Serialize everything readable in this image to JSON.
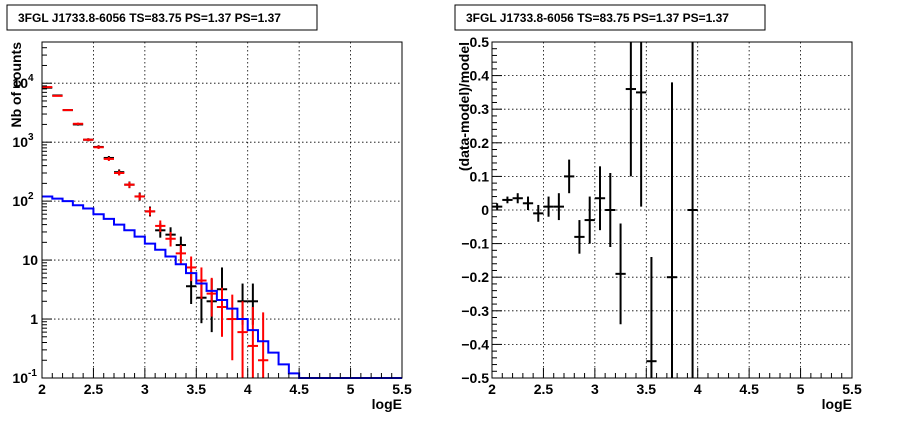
{
  "chart_data": [
    {
      "type": "scatter",
      "title": "3FGL J1733.8-6056 TS=83.75 PS=1.37 PS=1.37",
      "xlabel": "logE",
      "ylabel": "Nb of counts",
      "xlim": [
        2,
        5.5
      ],
      "ylim": [
        0.1,
        50000
      ],
      "yscale": "log",
      "grid": true,
      "x_ticks": [
        "2",
        "2.5",
        "3",
        "3.5",
        "4",
        "4.5",
        "5",
        "5.5"
      ],
      "y_ticks": [
        {
          "value": 0.1,
          "base": "10",
          "exp": "-1"
        },
        {
          "value": 1,
          "base": "1",
          "exp": ""
        },
        {
          "value": 10,
          "base": "10",
          "exp": ""
        },
        {
          "value": 100,
          "base": "10",
          "exp": "2"
        },
        {
          "value": 1000,
          "base": "10",
          "exp": "3"
        },
        {
          "value": 10000,
          "base": "10",
          "exp": "4"
        }
      ],
      "series": [
        {
          "color": "#000000",
          "points": [
            {
              "x": 2.05,
              "y": 8400,
              "lo": 8220,
              "hi": 8580
            },
            {
              "x": 2.15,
              "y": 6200,
              "lo": 6040,
              "hi": 6360
            },
            {
              "x": 2.25,
              "y": 3500,
              "lo": 3380,
              "hi": 3620
            },
            {
              "x": 2.35,
              "y": 2000,
              "lo": 1910,
              "hi": 2090
            },
            {
              "x": 2.45,
              "y": 1100,
              "lo": 1035,
              "hi": 1165
            },
            {
              "x": 2.55,
              "y": 830,
              "lo": 773,
              "hi": 887
            },
            {
              "x": 2.65,
              "y": 540,
              "lo": 497,
              "hi": 583
            },
            {
              "x": 2.75,
              "y": 310,
              "lo": 278,
              "hi": 345
            },
            {
              "x": 2.85,
              "y": 190,
              "lo": 166,
              "hi": 215
            },
            {
              "x": 2.95,
              "y": 120,
              "lo": 102,
              "hi": 140
            },
            {
              "x": 3.05,
              "y": 67,
              "lo": 55,
              "hi": 81
            },
            {
              "x": 3.15,
              "y": 32,
              "lo": 24,
              "hi": 42
            },
            {
              "x": 3.25,
              "y": 27,
              "lo": 20,
              "hi": 36
            },
            {
              "x": 3.35,
              "y": 18,
              "lo": 12.5,
              "hi": 25
            },
            {
              "x": 3.45,
              "y": 3.6,
              "lo": 1.8,
              "hi": 6.5
            },
            {
              "x": 3.55,
              "y": 2.3,
              "lo": 0.85,
              "hi": 4.3
            },
            {
              "x": 3.65,
              "y": 2.0,
              "lo": 0.6,
              "hi": 4.8
            },
            {
              "x": 3.75,
              "y": 3.2,
              "lo": 1.1,
              "hi": 7.5
            },
            {
              "x": 3.95,
              "y": 2.0,
              "lo": 0.8,
              "hi": 4.0
            },
            {
              "x": 4.05,
              "y": 2.0,
              "lo": 0.8,
              "hi": 4.0
            }
          ]
        },
        {
          "color": "#ff0000",
          "points": [
            {
              "x": 2.05,
              "y": 8600,
              "lo": 8400,
              "hi": 8800
            },
            {
              "x": 2.15,
              "y": 6100,
              "lo": 5950,
              "hi": 6250
            },
            {
              "x": 2.25,
              "y": 3500,
              "lo": 3400,
              "hi": 3600
            },
            {
              "x": 2.35,
              "y": 2050,
              "lo": 1960,
              "hi": 2140
            },
            {
              "x": 2.45,
              "y": 1100,
              "lo": 1040,
              "hi": 1160
            },
            {
              "x": 2.55,
              "y": 820,
              "lo": 770,
              "hi": 870
            },
            {
              "x": 2.65,
              "y": 520,
              "lo": 480,
              "hi": 560
            },
            {
              "x": 2.75,
              "y": 300,
              "lo": 272,
              "hi": 330
            },
            {
              "x": 2.85,
              "y": 190,
              "lo": 168,
              "hi": 212
            },
            {
              "x": 2.95,
              "y": 120,
              "lo": 104,
              "hi": 136
            },
            {
              "x": 3.05,
              "y": 67,
              "lo": 57,
              "hi": 78
            },
            {
              "x": 3.15,
              "y": 38,
              "lo": 30,
              "hi": 47
            },
            {
              "x": 3.25,
              "y": 23,
              "lo": 17,
              "hi": 30
            },
            {
              "x": 3.35,
              "y": 13,
              "lo": 8.5,
              "hi": 18
            },
            {
              "x": 3.45,
              "y": 7.5,
              "lo": 4.4,
              "hi": 11.5
            },
            {
              "x": 3.55,
              "y": 4.5,
              "lo": 2.2,
              "hi": 7.5
            },
            {
              "x": 3.65,
              "y": 2.7,
              "lo": 1.1,
              "hi": 5.0
            },
            {
              "x": 3.75,
              "y": 1.6,
              "lo": 0.5,
              "hi": 3.4
            },
            {
              "x": 3.85,
              "y": 1.0,
              "lo": 0.2,
              "hi": 2.6
            },
            {
              "x": 3.95,
              "y": 0.6,
              "lo": 0.1,
              "hi": 2.0
            },
            {
              "x": 4.05,
              "y": 0.35,
              "lo": 0.1,
              "hi": 1.6
            },
            {
              "x": 4.15,
              "y": 0.2,
              "lo": 0.1,
              "hi": 1.3
            }
          ]
        },
        {
          "color": "#0000ff",
          "kind": "step",
          "edges": [
            2.0,
            2.1,
            2.2,
            2.3,
            2.4,
            2.5,
            2.6,
            2.7,
            2.8,
            2.9,
            3.0,
            3.1,
            3.2,
            3.3,
            3.4,
            3.5,
            3.6,
            3.7,
            3.8,
            3.9,
            4.0,
            4.1,
            4.2,
            4.3,
            4.4,
            4.5,
            5.5
          ],
          "values": [
            120,
            110,
            100,
            85,
            75,
            60,
            50,
            40,
            32,
            25,
            19,
            15,
            11.5,
            8.5,
            6,
            4,
            3,
            2.1,
            1.5,
            1.0,
            0.65,
            0.42,
            0.27,
            0.17,
            0.12,
            0.1
          ]
        }
      ]
    },
    {
      "type": "scatter",
      "title": "3FGL J1733.8-6056 TS=83.75 PS=1.37 PS=1.37",
      "xlabel": "logE",
      "ylabel": "(data-model)/model",
      "xlim": [
        2,
        5.5
      ],
      "ylim": [
        -0.5,
        0.5
      ],
      "grid": true,
      "x_ticks": [
        "2",
        "2.5",
        "3",
        "3.5",
        "4",
        "4.5",
        "5",
        "5.5"
      ],
      "y_ticks": [
        "−0.5",
        "−0.4",
        "−0.3",
        "−0.2",
        "−0.1",
        "0",
        "0.1",
        "0.2",
        "0.3",
        "0.4",
        "0.5"
      ],
      "y_tick_values": [
        -0.5,
        -0.4,
        -0.3,
        -0.2,
        -0.1,
        0,
        0.1,
        0.2,
        0.3,
        0.4,
        0.5
      ],
      "series": [
        {
          "color": "#000000",
          "points": [
            {
              "x": 2.05,
              "y": 0.01,
              "lo": 0.0,
              "hi": 0.02
            },
            {
              "x": 2.15,
              "y": 0.03,
              "lo": 0.02,
              "hi": 0.04
            },
            {
              "x": 2.25,
              "y": 0.035,
              "lo": 0.02,
              "hi": 0.05
            },
            {
              "x": 2.35,
              "y": 0.02,
              "lo": 0.0,
              "hi": 0.04
            },
            {
              "x": 2.45,
              "y": -0.01,
              "lo": -0.035,
              "hi": 0.015
            },
            {
              "x": 2.55,
              "y": 0.01,
              "lo": -0.02,
              "hi": 0.04
            },
            {
              "x": 2.65,
              "y": 0.01,
              "lo": -0.03,
              "hi": 0.05
            },
            {
              "x": 2.75,
              "y": 0.1,
              "lo": 0.05,
              "hi": 0.15
            },
            {
              "x": 2.85,
              "y": -0.08,
              "lo": -0.13,
              "hi": -0.03
            },
            {
              "x": 2.95,
              "y": -0.03,
              "lo": -0.1,
              "hi": 0.04
            },
            {
              "x": 3.05,
              "y": 0.035,
              "lo": -0.06,
              "hi": 0.13
            },
            {
              "x": 3.15,
              "y": 0.0,
              "lo": -0.11,
              "hi": 0.11
            },
            {
              "x": 3.25,
              "y": -0.19,
              "lo": -0.34,
              "hi": -0.04
            },
            {
              "x": 3.35,
              "y": 0.36,
              "lo": 0.1,
              "hi": 0.5
            },
            {
              "x": 3.45,
              "y": 0.35,
              "lo": 0.01,
              "hi": 0.5
            },
            {
              "x": 3.55,
              "y": -0.45,
              "lo": -0.5,
              "hi": -0.14
            },
            {
              "x": 3.75,
              "y": -0.2,
              "lo": -0.5,
              "hi": 0.38
            },
            {
              "x": 3.95,
              "y": 0.0,
              "lo": -0.5,
              "hi": 0.5
            }
          ]
        }
      ]
    }
  ]
}
